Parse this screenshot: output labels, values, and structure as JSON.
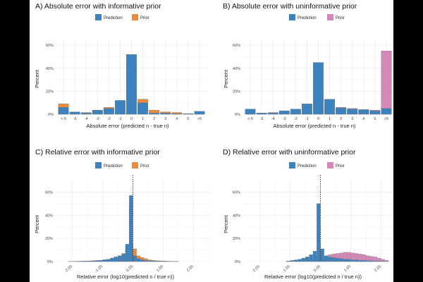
{
  "colors": {
    "prediction": "#3b82be",
    "prior_informative": "#ee8a3c",
    "prior_uninformative": "#d687b8",
    "bar_outline": "#777777"
  },
  "chart_data": [
    {
      "id": "A",
      "type": "bar",
      "title": "A) Absolute error with informative prior",
      "xlabel": "Absolute error (predicted n - true n)",
      "ylabel": "Percent",
      "ylim": [
        0,
        65
      ],
      "yticks": [
        "0%",
        "20%",
        "40%",
        "60%"
      ],
      "legend": {
        "items": [
          "Prediction",
          "Prior"
        ],
        "placement": "top-center"
      },
      "categories": [
        "<-5",
        "-5",
        "-4",
        "-3",
        "-2",
        "-1",
        "0",
        "1",
        "2",
        "3",
        "4",
        "5",
        ">5"
      ],
      "series": [
        {
          "name": "Prior",
          "values": [
            9,
            2,
            1.5,
            3.5,
            6,
            11,
            45,
            13,
            3.5,
            2,
            1.5,
            0.5,
            0.5
          ]
        },
        {
          "name": "Prediction",
          "values": [
            6,
            2,
            1,
            3.5,
            5,
            12,
            52,
            10,
            1,
            1,
            0.5,
            0.5,
            2.5
          ]
        }
      ]
    },
    {
      "id": "B",
      "type": "bar",
      "title": "B) Absolute error with uninformative prior",
      "xlabel": "Absolute error (predicted n - true n)",
      "ylabel": "Percent",
      "ylim": [
        0,
        65
      ],
      "yticks": [
        "0%",
        "20%",
        "40%",
        "60%"
      ],
      "legend": {
        "items": [
          "Prediction",
          "Prior"
        ],
        "placement": "top-center"
      },
      "categories": [
        "<-5",
        "-5",
        "-4",
        "-3",
        "-2",
        "-1",
        "0",
        "1",
        "2",
        "3",
        "4",
        "5",
        ">5"
      ],
      "series": [
        {
          "name": "Prior",
          "values": [
            1,
            1,
            1.5,
            2,
            2.5,
            3,
            9,
            6,
            6,
            5,
            4,
            3.5,
            55
          ]
        },
        {
          "name": "Prediction",
          "values": [
            4.5,
            1,
            1,
            3,
            4.5,
            9,
            45,
            13,
            5.5,
            4.5,
            4,
            3,
            5
          ]
        }
      ]
    },
    {
      "id": "C",
      "type": "bar",
      "title": "C) Relative error with informative prior",
      "xlabel": "Relative error (log10(predicted n / true n))",
      "ylabel": "Percent",
      "ylim": [
        0,
        70
      ],
      "yticks": [
        "0%",
        "20%",
        "40%",
        "60%"
      ],
      "xlim": [
        -2.5,
        2.5
      ],
      "xticks": [
        "-2.00",
        "-1.00",
        "0.00",
        "1.00",
        "2.00"
      ],
      "xtick_values": [
        -2,
        -1,
        0,
        1,
        2
      ],
      "bin_width": 0.125,
      "vline": 0,
      "legend": {
        "items": [
          "Prediction",
          "Prior"
        ],
        "placement": "top-center"
      },
      "bin_centers": [
        -2.0625,
        -1.9375,
        -1.8125,
        -1.6875,
        -1.5625,
        -1.4375,
        -1.3125,
        -1.1875,
        -1.0625,
        -0.9375,
        -0.8125,
        -0.6875,
        -0.5625,
        -0.4375,
        -0.3125,
        -0.1875,
        -0.0625,
        0.0625,
        0.1875,
        0.3125,
        0.4375,
        0.5625,
        0.6875,
        0.8125,
        0.9375,
        1.0625,
        1.1875,
        1.3125,
        1.4375
      ],
      "series": [
        {
          "name": "Prior",
          "values": [
            0.2,
            0.2,
            0.3,
            0.4,
            0.5,
            0.6,
            0.8,
            1,
            1.2,
            1.6,
            2,
            3,
            4,
            5,
            7,
            12,
            49,
            11,
            5,
            3.5,
            2.5,
            1.5,
            1,
            0.8,
            0.6,
            0.5,
            0.3,
            0.2,
            0.1
          ]
        },
        {
          "name": "Prediction",
          "values": [
            0.1,
            0.1,
            0.2,
            0.3,
            0.4,
            0.5,
            0.6,
            0.8,
            1,
            1.5,
            2,
            3,
            4,
            5,
            6.5,
            15,
            57,
            5,
            2.5,
            1.5,
            1,
            0.8,
            0.6,
            0.4,
            0.3,
            0.2,
            0.1,
            0.1,
            0.1
          ]
        }
      ]
    },
    {
      "id": "D",
      "type": "bar",
      "title": "D) Relative error with uninformative prior",
      "xlabel": "Relative error (log10(predicted n / true n))",
      "ylabel": "Percent",
      "ylim": [
        0,
        70
      ],
      "yticks": [
        "0%",
        "20%",
        "40%",
        "60%"
      ],
      "xlim": [
        -2.5,
        2.5
      ],
      "xticks": [
        "-2.00",
        "-1.00",
        "0.00",
        "1.00",
        "2.00"
      ],
      "xtick_values": [
        -2,
        -1,
        0,
        1,
        2
      ],
      "bin_width": 0.125,
      "vline": 0,
      "legend": {
        "items": [
          "Prediction",
          "Prior"
        ],
        "placement": "top-center"
      },
      "bin_centers": [
        -1.0625,
        -0.9375,
        -0.8125,
        -0.6875,
        -0.5625,
        -0.4375,
        -0.3125,
        -0.1875,
        -0.0625,
        0.0625,
        0.1875,
        0.3125,
        0.4375,
        0.5625,
        0.6875,
        0.8125,
        0.9375,
        1.0625,
        1.1875,
        1.3125,
        1.4375,
        1.5625,
        1.6875,
        1.8125,
        1.9375,
        2.0625,
        2.1875
      ],
      "series": [
        {
          "name": "Prior",
          "values": [
            0.2,
            0.3,
            0.5,
            0.8,
            1,
            1.5,
            2,
            3,
            4,
            4.5,
            5,
            6,
            6.5,
            7,
            7.5,
            8,
            8,
            7.5,
            7,
            6.5,
            6,
            5,
            4.5,
            4,
            3,
            2,
            1
          ]
        },
        {
          "name": "Prediction",
          "values": [
            0.5,
            1,
            1.5,
            2,
            3,
            4,
            6,
            9,
            50,
            11,
            5,
            4,
            3.5,
            3,
            2.5,
            2,
            2,
            1.5,
            1.5,
            1,
            1,
            0.8,
            0.7,
            0.5,
            0.4,
            0.3,
            0.2
          ]
        }
      ]
    }
  ]
}
